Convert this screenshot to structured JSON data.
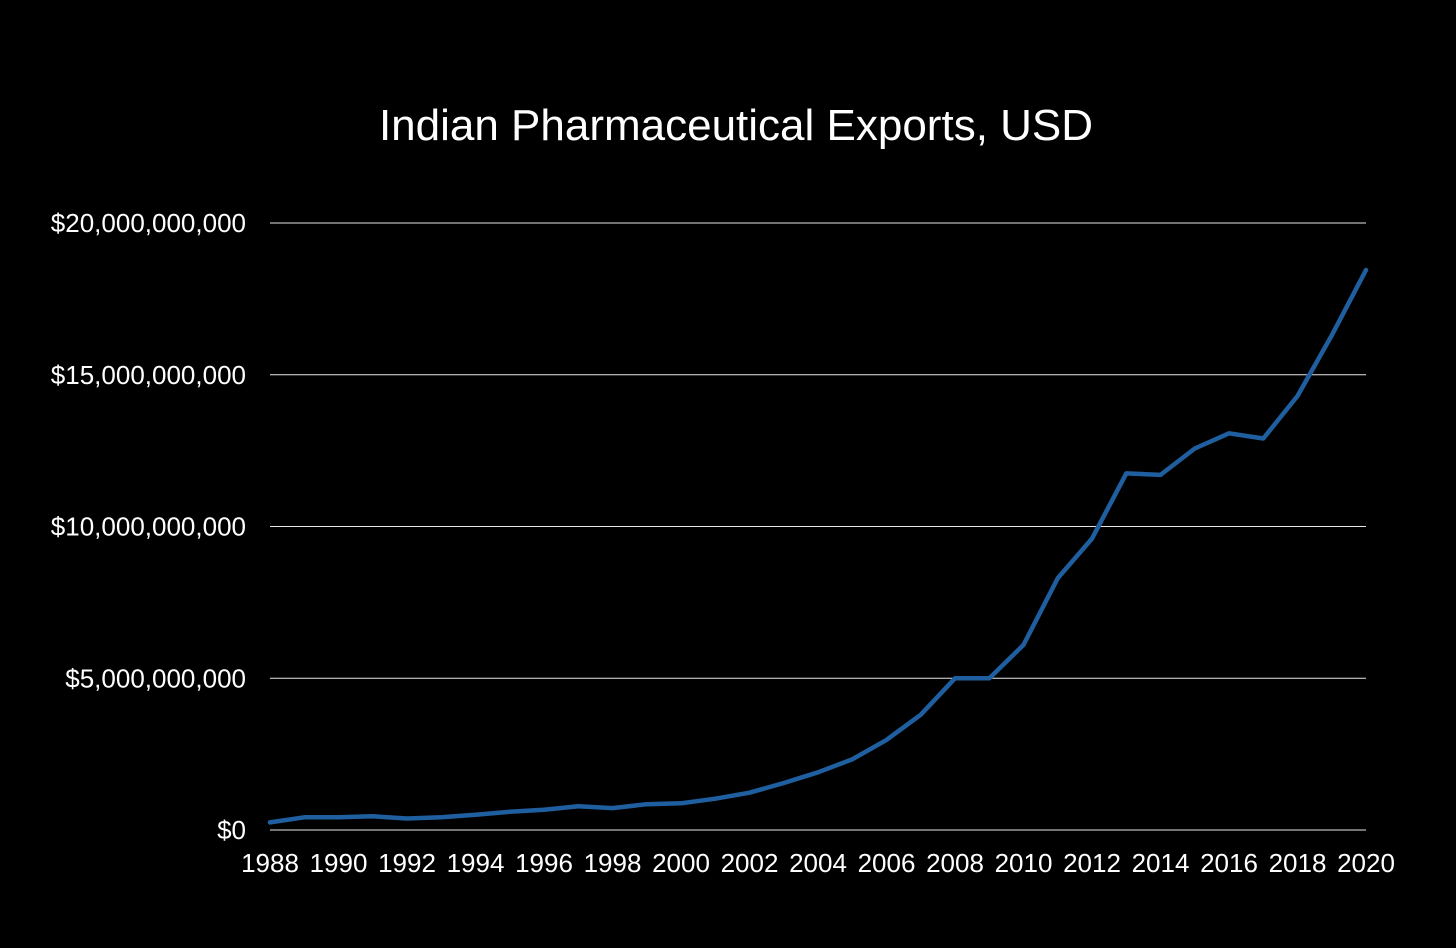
{
  "chart_data": {
    "type": "line",
    "title": "Indian Pharmaceutical Exports, USD",
    "xlabel": "",
    "ylabel": "",
    "ylim": [
      0,
      20000000000
    ],
    "grid": true,
    "legend": "none",
    "y_ticks": [
      {
        "value": 0,
        "label": "$0"
      },
      {
        "value": 5000000000,
        "label": "$5,000,000,000"
      },
      {
        "value": 10000000000,
        "label": "$10,000,000,000"
      },
      {
        "value": 15000000000,
        "label": "$15,000,000,000"
      },
      {
        "value": 20000000000,
        "label": "$20,000,000,000"
      }
    ],
    "x_tick_labels": [
      "1988",
      "1990",
      "1992",
      "1994",
      "1996",
      "1998",
      "2000",
      "2002",
      "2004",
      "2006",
      "2008",
      "2010",
      "2012",
      "2014",
      "2016",
      "2018",
      "2020"
    ],
    "x": [
      1988,
      1989,
      1990,
      1991,
      1992,
      1993,
      1994,
      1995,
      1996,
      1997,
      1998,
      1999,
      2000,
      2001,
      2002,
      2003,
      2004,
      2005,
      2006,
      2007,
      2008,
      2009,
      2010,
      2011,
      2012,
      2013,
      2014,
      2015,
      2016,
      2017,
      2018,
      2019,
      2020
    ],
    "series": [
      {
        "color": "#1f5fa0",
        "values": [
          250000000,
          420000000,
          420000000,
          450000000,
          380000000,
          420000000,
          500000000,
          600000000,
          670000000,
          780000000,
          720000000,
          850000000,
          880000000,
          1030000000,
          1230000000,
          1550000000,
          1900000000,
          2330000000,
          2970000000,
          3800000000,
          5000000000,
          5000000000,
          6100000000,
          8300000000,
          9600000000,
          11750000000,
          11700000000,
          12570000000,
          13070000000,
          12900000000,
          14300000000,
          16300000000,
          18450000000
        ]
      }
    ]
  }
}
